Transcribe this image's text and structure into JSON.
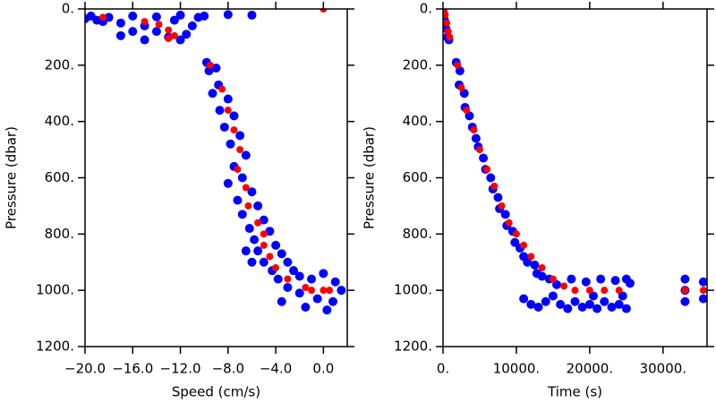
{
  "chart_data": [
    {
      "type": "scatter",
      "xlabel": "Speed (cm/s)",
      "ylabel": "Pressure (dbar)",
      "xlim": [
        -20,
        2
      ],
      "ylim": [
        1200,
        0
      ],
      "y_inverted": true,
      "xticks": [
        {
          "value": -20,
          "label": "−20.0"
        },
        {
          "value": -16,
          "label": "−16.0"
        },
        {
          "value": -12,
          "label": "−12.0"
        },
        {
          "value": -8,
          "label": "−8.0"
        },
        {
          "value": -4,
          "label": "−4.0"
        },
        {
          "value": 0,
          "label": "0.0"
        }
      ],
      "yticks": [
        {
          "value": 0,
          "label": "0."
        },
        {
          "value": 200,
          "label": "200."
        },
        {
          "value": 400,
          "label": "400."
        },
        {
          "value": 600,
          "label": "600."
        },
        {
          "value": 800,
          "label": "800."
        },
        {
          "value": 1000,
          "label": "1000."
        },
        {
          "value": 1200,
          "label": "1200."
        }
      ],
      "series": [
        {
          "color": "#0000ff",
          "x": [
            -19.5,
            -18,
            -16,
            -14,
            -12,
            -10,
            -8,
            -6,
            -19,
            -17,
            -15,
            -14,
            -13,
            -12,
            -15,
            -17,
            -16,
            -11,
            -11.5,
            -12.5,
            -18.5,
            -10.5,
            -20,
            -9.8,
            -9,
            -9.6,
            -8.8,
            -9.3,
            -8,
            -8.7,
            -7.5,
            -8.3,
            -7,
            -7.8,
            -6.5,
            -7.5,
            -6.8,
            -8,
            -6,
            -7.2,
            -5.5,
            -6.8,
            -5,
            -6.2,
            -4.5,
            -5.8,
            -4,
            -5.5,
            -3.5,
            -5,
            -3,
            -4.3,
            -2.5,
            -3.8,
            -2,
            -3,
            -1,
            -2,
            0,
            -0.5,
            1,
            0.8,
            -1.5,
            0.3,
            1.5,
            -3.5,
            -6,
            -6.5
          ],
          "values": [
            25,
            30,
            25,
            28,
            22,
            25,
            20,
            22,
            40,
            50,
            60,
            80,
            100,
            110,
            110,
            95,
            80,
            60,
            90,
            40,
            45,
            30,
            35,
            190,
            210,
            220,
            270,
            300,
            320,
            360,
            380,
            420,
            450,
            480,
            520,
            560,
            600,
            620,
            650,
            680,
            700,
            730,
            750,
            780,
            790,
            820,
            840,
            860,
            870,
            900,
            900,
            930,
            930,
            960,
            950,
            990,
            960,
            1010,
            940,
            1030,
            970,
            1040,
            1060,
            1070,
            1000,
            1040,
            900,
            860
          ]
        },
        {
          "color": "#ff0000",
          "x": [
            -18.5,
            -15,
            -13.8,
            -13,
            -12.5,
            -13,
            0,
            -9.5,
            -8.5,
            -8,
            -7.5,
            -7,
            -7.2,
            -6.5,
            -6.3,
            -5.5,
            -5,
            -5,
            -4.5,
            -4,
            -3,
            -1.5,
            -1,
            0,
            0.5
          ],
          "values": [
            30,
            45,
            55,
            75,
            95,
            105,
            0,
            200,
            285,
            360,
            430,
            500,
            570,
            635,
            700,
            760,
            800,
            840,
            880,
            920,
            960,
            990,
            1000,
            1000,
            1000
          ]
        }
      ]
    },
    {
      "type": "scatter",
      "xlabel": "Time (s)",
      "ylabel": "Pressure (dbar)",
      "xlim": [
        0,
        36000
      ],
      "ylim": [
        1200,
        0
      ],
      "y_inverted": true,
      "xticks": [
        {
          "value": 0,
          "label": "0."
        },
        {
          "value": 10000,
          "label": "10000."
        },
        {
          "value": 20000,
          "label": "20000."
        },
        {
          "value": 30000,
          "label": "30000."
        }
      ],
      "yticks": [
        {
          "value": 0,
          "label": "0."
        },
        {
          "value": 200,
          "label": "200."
        },
        {
          "value": 400,
          "label": "400."
        },
        {
          "value": 600,
          "label": "600."
        },
        {
          "value": 800,
          "label": "800."
        },
        {
          "value": 1000,
          "label": "1000."
        },
        {
          "value": 1200,
          "label": "1200."
        }
      ],
      "series": [
        {
          "color": "#0000ff",
          "x": [
            0,
            200,
            400,
            600,
            800,
            1800,
            2300,
            2200,
            2900,
            3000,
            3600,
            4000,
            4500,
            4800,
            5500,
            5800,
            6500,
            6800,
            7500,
            7700,
            8500,
            8700,
            9500,
            9800,
            10500,
            11000,
            11500,
            12500,
            12800,
            13500,
            14500,
            15500,
            11000,
            12000,
            13000,
            14000,
            16000,
            17000,
            18000,
            19000,
            20000,
            21000,
            22000,
            23000,
            24000,
            25000,
            17500,
            19500,
            21500,
            23500,
            25000,
            25500,
            15000,
            20500,
            24500,
            33000,
            33000,
            33000,
            35500,
            35500
          ],
          "values": [
            10,
            40,
            70,
            100,
            110,
            190,
            220,
            270,
            300,
            350,
            380,
            420,
            460,
            490,
            530,
            570,
            600,
            640,
            670,
            710,
            730,
            770,
            790,
            830,
            850,
            880,
            900,
            910,
            940,
            950,
            960,
            980,
            1030,
            1050,
            1060,
            1040,
            1050,
            1065,
            1040,
            1060,
            1050,
            1065,
            1040,
            1060,
            1050,
            1065,
            960,
            970,
            960,
            965,
            960,
            975,
            1020,
            1020,
            1020,
            960,
            1000,
            1040,
            970,
            1030
          ]
        },
        {
          "color": "#ff0000",
          "x": [
            0,
            300,
            500,
            700,
            900,
            2000,
            2500,
            3200,
            4200,
            5000,
            6000,
            7000,
            8000,
            9000,
            10000,
            11000,
            12000,
            13500,
            15000,
            16500,
            18000,
            20000,
            22000,
            24000,
            33000,
            35500
          ],
          "values": [
            0,
            20,
            50,
            80,
            100,
            200,
            280,
            360,
            430,
            500,
            570,
            630,
            700,
            760,
            800,
            840,
            880,
            920,
            960,
            985,
            1000,
            1000,
            1000,
            1000,
            1000,
            1000
          ]
        }
      ]
    }
  ]
}
